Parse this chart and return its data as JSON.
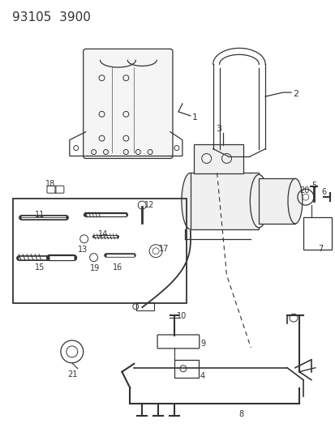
{
  "title": "93105  3900",
  "bg_color": "#ffffff",
  "line_color": "#333333",
  "title_fontsize": 11,
  "fig_w": 4.14,
  "fig_h": 5.33,
  "dpi": 100
}
